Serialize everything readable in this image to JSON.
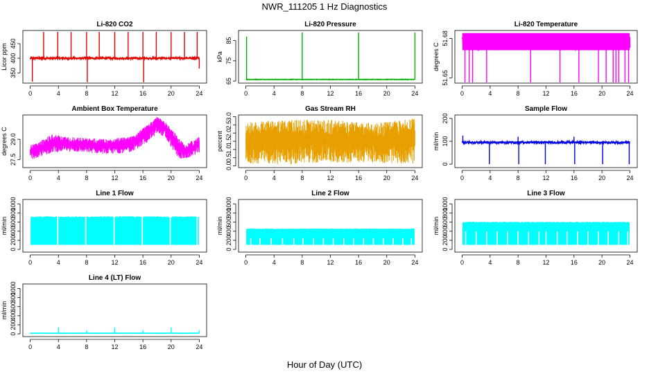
{
  "figure": {
    "title": "NWR_111205  1 Hz Diagnostics",
    "xlabel": "Hour of Day (UTC)"
  },
  "chart_data": [
    {
      "id": "co2",
      "type": "line",
      "title": "Li-820 CO2",
      "ylabel": "Licor ppm",
      "color": "#e00000",
      "xlim": [
        0,
        24
      ],
      "ylim": [
        315,
        495
      ],
      "xticks": [
        0,
        4,
        8,
        12,
        16,
        20,
        24
      ],
      "yticks": [
        350,
        400,
        450
      ],
      "ytick_labels": [
        "350",
        "400",
        "450"
      ],
      "baseline": 400,
      "noise": 3,
      "band_top": null,
      "spikes": [
        {
          "x": 0.3,
          "y": 320
        },
        {
          "x": 1.9,
          "y": 490
        },
        {
          "x": 3.9,
          "y": 490
        },
        {
          "x": 5.8,
          "y": 490
        },
        {
          "x": 8.0,
          "y": 490
        },
        {
          "x": 8.1,
          "y": 318
        },
        {
          "x": 9.8,
          "y": 490
        },
        {
          "x": 12.0,
          "y": 490
        },
        {
          "x": 13.9,
          "y": 490
        },
        {
          "x": 16.0,
          "y": 490
        },
        {
          "x": 16.1,
          "y": 318
        },
        {
          "x": 17.9,
          "y": 490
        },
        {
          "x": 20.0,
          "y": 490
        },
        {
          "x": 21.9,
          "y": 490
        },
        {
          "x": 23.7,
          "y": 490
        },
        {
          "x": 24.0,
          "y": 365
        }
      ]
    },
    {
      "id": "pressure",
      "type": "line",
      "title": "Li-820 Pressure",
      "ylabel": "kPa",
      "color": "#00b000",
      "xlim": [
        0,
        24
      ],
      "ylim": [
        64,
        90
      ],
      "xticks": [
        0,
        4,
        8,
        12,
        16,
        20,
        24
      ],
      "yticks": [
        65,
        75,
        85
      ],
      "ytick_labels": [
        "65",
        "75",
        "85"
      ],
      "baseline": 65.8,
      "noise": 0.1,
      "band_top": null,
      "spikes": [
        {
          "x": 0.1,
          "y": 87
        },
        {
          "x": 8.0,
          "y": 89
        },
        {
          "x": 16.0,
          "y": 89
        },
        {
          "x": 24.0,
          "y": 89
        }
      ]
    },
    {
      "id": "licor_temp",
      "type": "line",
      "title": "Li-820 Temperature",
      "ylabel": "degrees C",
      "color": "#ff00ff",
      "xlim": [
        0,
        24
      ],
      "ylim": [
        51.646,
        51.686
      ],
      "xticks": [
        0,
        4,
        8,
        12,
        16,
        20,
        24
      ],
      "yticks": [
        51.65,
        51.68
      ],
      "ytick_labels": [
        "51.65",
        "51.68"
      ],
      "baseline": 51.677,
      "noise": 0.006,
      "band_top": 51.684,
      "spikes": [
        {
          "x": 0.4,
          "y": 51.646
        },
        {
          "x": 1.0,
          "y": 51.646
        },
        {
          "x": 1.5,
          "y": 51.646
        },
        {
          "x": 3.5,
          "y": 51.646
        },
        {
          "x": 9.8,
          "y": 51.646
        },
        {
          "x": 14.0,
          "y": 51.646
        },
        {
          "x": 16.7,
          "y": 51.646
        },
        {
          "x": 19.5,
          "y": 51.646
        },
        {
          "x": 20.6,
          "y": 51.646
        },
        {
          "x": 21.6,
          "y": 51.646
        },
        {
          "x": 22.0,
          "y": 51.646
        },
        {
          "x": 22.4,
          "y": 51.646
        },
        {
          "x": 23.3,
          "y": 51.646
        },
        {
          "x": 23.8,
          "y": 51.646
        }
      ]
    },
    {
      "id": "ambient_temp",
      "type": "line",
      "title": "Ambient Box Temperature",
      "ylabel": "degrees C",
      "color": "#ff00ff",
      "xlim": [
        0,
        24
      ],
      "ylim": [
        26.9,
        30.8
      ],
      "xticks": [
        0,
        4,
        8,
        12,
        16,
        20,
        24
      ],
      "yticks": [
        27.5,
        29.0
      ],
      "ytick_labels": [
        "27.5",
        "29.0"
      ],
      "profile": [
        {
          "x": 0,
          "lo": 27.5,
          "hi": 28.6
        },
        {
          "x": 1,
          "lo": 27.6,
          "hi": 28.7
        },
        {
          "x": 3,
          "lo": 28.0,
          "hi": 29.4
        },
        {
          "x": 5,
          "lo": 28.1,
          "hi": 29.2
        },
        {
          "x": 8,
          "lo": 28.0,
          "hi": 29.1
        },
        {
          "x": 11,
          "lo": 27.9,
          "hi": 29.0
        },
        {
          "x": 14,
          "lo": 28.0,
          "hi": 29.2
        },
        {
          "x": 16,
          "lo": 28.5,
          "hi": 29.8
        },
        {
          "x": 18,
          "lo": 29.4,
          "hi": 30.7
        },
        {
          "x": 19,
          "lo": 29.2,
          "hi": 30.4
        },
        {
          "x": 21,
          "lo": 27.6,
          "hi": 29.2
        },
        {
          "x": 22,
          "lo": 27.5,
          "hi": 28.6
        },
        {
          "x": 24,
          "lo": 28.0,
          "hi": 29.2
        }
      ]
    },
    {
      "id": "rh",
      "type": "line",
      "title": "Gas Stream RH",
      "ylabel": "percent",
      "color": "#e8a000",
      "xlim": [
        0,
        24
      ],
      "ylim": [
        -0.1,
        3.1
      ],
      "xticks": [
        0,
        4,
        8,
        12,
        16,
        20,
        24
      ],
      "yticks": [
        0.0,
        0.5,
        1.0,
        1.5,
        2.0,
        2.5,
        3.0
      ],
      "ytick_labels": [
        "0.0",
        "0.5",
        "1.0",
        "1.5",
        "2.0",
        "2.5",
        "3.0"
      ],
      "profile": [
        {
          "x": 0,
          "lo": 0.1,
          "hi": 2.7
        },
        {
          "x": 6,
          "lo": 0.1,
          "hi": 2.8
        },
        {
          "x": 12,
          "lo": 0.2,
          "hi": 2.8
        },
        {
          "x": 18,
          "lo": 0.2,
          "hi": 2.6
        },
        {
          "x": 24,
          "lo": 0.1,
          "hi": 2.9
        }
      ]
    },
    {
      "id": "sample_flow",
      "type": "line",
      "title": "Sample Flow",
      "ylabel": "ml/min",
      "color": "#0000e0",
      "xlim": [
        0,
        24
      ],
      "ylim": [
        -15,
        215
      ],
      "xticks": [
        0,
        4,
        8,
        12,
        16,
        20,
        24
      ],
      "yticks": [
        0,
        100,
        200
      ],
      "ytick_labels": [
        "0",
        "100",
        "200"
      ],
      "baseline": 95,
      "noise": 4,
      "band_top": null,
      "spikes": [
        {
          "x": 0.1,
          "y": 125
        },
        {
          "x": 3.9,
          "y": 0
        },
        {
          "x": 8.0,
          "y": 120
        },
        {
          "x": 8.1,
          "y": 0
        },
        {
          "x": 11.9,
          "y": 0
        },
        {
          "x": 16.0,
          "y": 120
        },
        {
          "x": 16.1,
          "y": 0
        },
        {
          "x": 20.0,
          "y": 90
        },
        {
          "x": 20.1,
          "y": 0
        },
        {
          "x": 23.9,
          "y": 0
        }
      ]
    },
    {
      "id": "line1",
      "type": "line",
      "title": "Line 1 Flow",
      "ylabel": "ml/min",
      "color": "#00ffff",
      "xlim": [
        0,
        24
      ],
      "ylim": [
        -60,
        1100
      ],
      "xticks": [
        0,
        4,
        8,
        12,
        16,
        20,
        24
      ],
      "yticks": [
        0,
        200,
        400,
        600,
        800,
        1000
      ],
      "ytick_labels": [
        "0",
        "200",
        "400",
        "600",
        "800",
        "1000"
      ],
      "band": {
        "lo": 100,
        "hi": 730,
        "x0": 0.1,
        "x1": 23.9
      },
      "gaps": [
        3.9,
        7.9,
        11.9,
        15.9,
        19.9,
        23.7
      ],
      "notches": []
    },
    {
      "id": "line2",
      "type": "line",
      "title": "Line 2 Flow",
      "ylabel": "ml/min",
      "color": "#00ffff",
      "xlim": [
        0,
        24
      ],
      "ylim": [
        -60,
        1100
      ],
      "xticks": [
        0,
        4,
        8,
        12,
        16,
        20,
        24
      ],
      "yticks": [
        0,
        200,
        400,
        600,
        800,
        1000
      ],
      "ytick_labels": [
        "0",
        "200",
        "400",
        "600",
        "800",
        "1000"
      ],
      "band": {
        "lo": 100,
        "hi": 460,
        "x0": 0.1,
        "x1": 23.9
      },
      "gaps": [],
      "notches": [
        0.7,
        2.0,
        3.6,
        5.2,
        6.8,
        8.1,
        9.6,
        11.0,
        12.4,
        13.9,
        15.3,
        16.7,
        18.1,
        19.5,
        20.9,
        22.3,
        23.5
      ]
    },
    {
      "id": "line3",
      "type": "line",
      "title": "Line 3 Flow",
      "ylabel": "ml/min",
      "color": "#00ffff",
      "xlim": [
        0,
        24
      ],
      "ylim": [
        -60,
        1100
      ],
      "xticks": [
        0,
        4,
        8,
        12,
        16,
        20,
        24
      ],
      "yticks": [
        0,
        200,
        400,
        600,
        800,
        1000
      ],
      "ytick_labels": [
        "0",
        "200",
        "400",
        "600",
        "800",
        "1000"
      ],
      "band": {
        "lo": 100,
        "hi": 610,
        "x0": 0.1,
        "x1": 23.9
      },
      "gaps": [],
      "notches": [
        0.5,
        2.0,
        3.5,
        5.0,
        6.5,
        8.0,
        9.5,
        11.0,
        12.0,
        13.6,
        15.0,
        16.5,
        18.0,
        19.5,
        20.9,
        22.4,
        23.7
      ]
    },
    {
      "id": "line4",
      "type": "line",
      "title": "Line 4 (LT) Flow",
      "ylabel": "ml/min",
      "color": "#00ffff",
      "xlim": [
        0,
        24
      ],
      "ylim": [
        -60,
        1100
      ],
      "xticks": [
        0,
        4,
        8,
        12,
        16,
        20,
        24
      ],
      "yticks": [
        0,
        200,
        400,
        600,
        800,
        1000
      ],
      "ytick_labels": [
        "0",
        "200",
        "400",
        "600",
        "800",
        "1000"
      ],
      "baseline": 15,
      "noise": 3,
      "band_top": null,
      "spikes": [
        {
          "x": 4.0,
          "y": 140
        },
        {
          "x": 8.0,
          "y": 80
        },
        {
          "x": 12.0,
          "y": 140
        },
        {
          "x": 16.0,
          "y": 80
        },
        {
          "x": 20.0,
          "y": 140
        },
        {
          "x": 24.0,
          "y": 80
        }
      ]
    }
  ]
}
